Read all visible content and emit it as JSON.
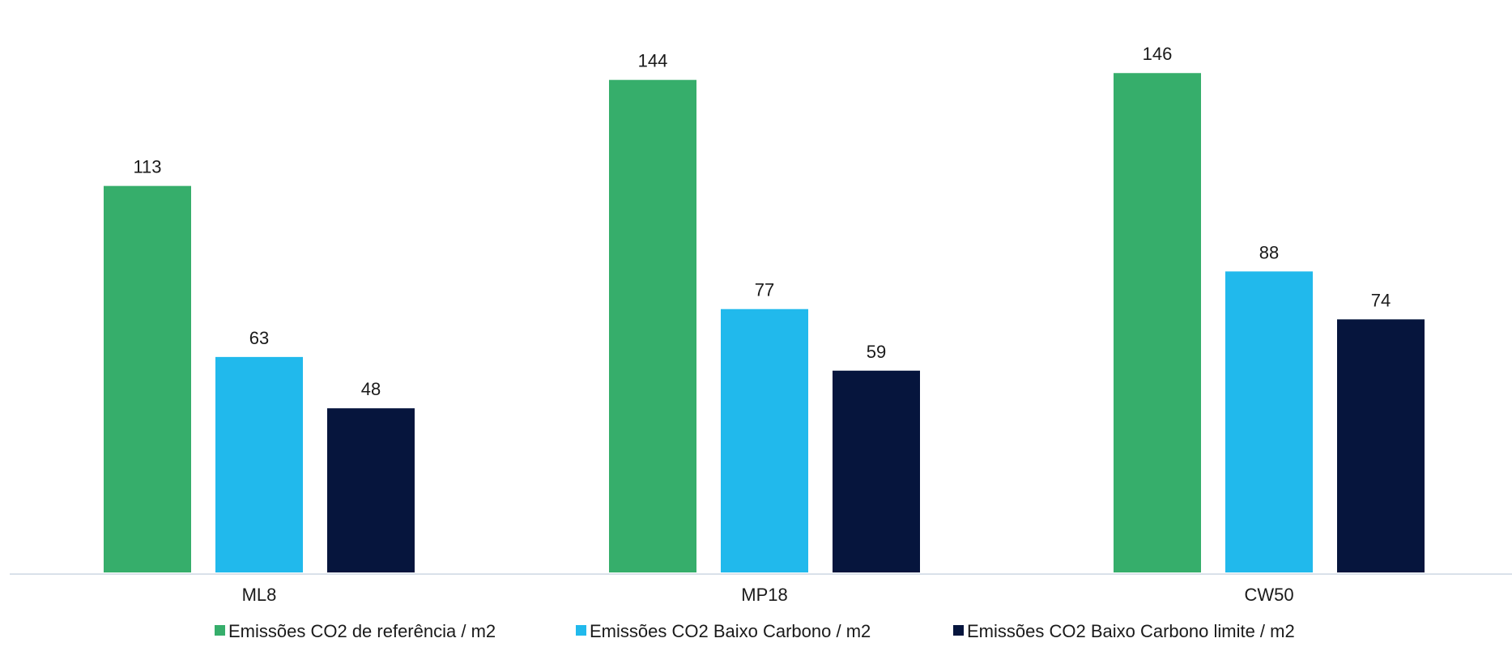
{
  "chart_data": {
    "type": "bar",
    "title": "",
    "xlabel": "",
    "ylabel": "",
    "categories": [
      "ML8",
      "MP18",
      "CW50"
    ],
    "series": [
      {
        "name": "Emissões CO2 de referência / m2",
        "color": "#36AE6B",
        "values": [
          113,
          144,
          146
        ]
      },
      {
        "name": "Emissões CO2 Baixo Carbono / m2",
        "color": "#21B9EC",
        "values": [
          63,
          77,
          88
        ]
      },
      {
        "name": "Emissões CO2 Baixo Carbono limite / m2",
        "color": "#06153D",
        "values": [
          48,
          59,
          74
        ]
      }
    ],
    "ylim": [
      0,
      156
    ],
    "grid": false,
    "show_data_labels": true,
    "legend_position": "bottom",
    "axis_line_color": "#D9E1EA",
    "text_color": "#1a1a1a"
  }
}
